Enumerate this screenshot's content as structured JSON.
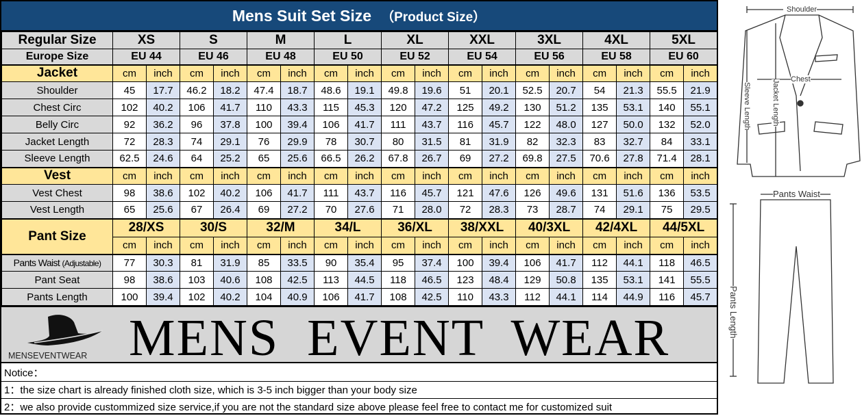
{
  "title": "Mens Suit Set Size",
  "title_sub": "（Product Size）",
  "regular_label": "Regular Size",
  "europe_label": "Europe Size",
  "sizes": [
    "XS",
    "S",
    "M",
    "L",
    "XL",
    "XXL",
    "3XL",
    "4XL",
    "5XL"
  ],
  "europe": [
    "EU 44",
    "EU 46",
    "EU 48",
    "EU 50",
    "EU 52",
    "EU 54",
    "EU 56",
    "EU 58",
    "EU 60"
  ],
  "unit_cm": "cm",
  "unit_inch": "inch",
  "jacket": {
    "label": "Jacket",
    "rows": [
      {
        "name": "Shoulder",
        "values": [
          [
            "45",
            "17.7"
          ],
          [
            "46.2",
            "18.2"
          ],
          [
            "47.4",
            "18.7"
          ],
          [
            "48.6",
            "19.1"
          ],
          [
            "49.8",
            "19.6"
          ],
          [
            "51",
            "20.1"
          ],
          [
            "52.5",
            "20.7"
          ],
          [
            "54",
            "21.3"
          ],
          [
            "55.5",
            "21.9"
          ]
        ]
      },
      {
        "name": "Chest Circ",
        "values": [
          [
            "102",
            "40.2"
          ],
          [
            "106",
            "41.7"
          ],
          [
            "110",
            "43.3"
          ],
          [
            "115",
            "45.3"
          ],
          [
            "120",
            "47.2"
          ],
          [
            "125",
            "49.2"
          ],
          [
            "130",
            "51.2"
          ],
          [
            "135",
            "53.1"
          ],
          [
            "140",
            "55.1"
          ]
        ]
      },
      {
        "name": "Belly Circ",
        "values": [
          [
            "92",
            "36.2"
          ],
          [
            "96",
            "37.8"
          ],
          [
            "100",
            "39.4"
          ],
          [
            "106",
            "41.7"
          ],
          [
            "111",
            "43.7"
          ],
          [
            "116",
            "45.7"
          ],
          [
            "122",
            "48.0"
          ],
          [
            "127",
            "50.0"
          ],
          [
            "132",
            "52.0"
          ]
        ]
      },
      {
        "name": "Jacket Length",
        "values": [
          [
            "72",
            "28.3"
          ],
          [
            "74",
            "29.1"
          ],
          [
            "76",
            "29.9"
          ],
          [
            "78",
            "30.7"
          ],
          [
            "80",
            "31.5"
          ],
          [
            "81",
            "31.9"
          ],
          [
            "82",
            "32.3"
          ],
          [
            "83",
            "32.7"
          ],
          [
            "84",
            "33.1"
          ]
        ]
      },
      {
        "name": "Sleeve Length",
        "values": [
          [
            "62.5",
            "24.6"
          ],
          [
            "64",
            "25.2"
          ],
          [
            "65",
            "25.6"
          ],
          [
            "66.5",
            "26.2"
          ],
          [
            "67.8",
            "26.7"
          ],
          [
            "69",
            "27.2"
          ],
          [
            "69.8",
            "27.5"
          ],
          [
            "70.6",
            "27.8"
          ],
          [
            "71.4",
            "28.1"
          ]
        ]
      }
    ]
  },
  "vest": {
    "label": "Vest",
    "rows": [
      {
        "name": "Vest Chest",
        "values": [
          [
            "98",
            "38.6"
          ],
          [
            "102",
            "40.2"
          ],
          [
            "106",
            "41.7"
          ],
          [
            "111",
            "43.7"
          ],
          [
            "116",
            "45.7"
          ],
          [
            "121",
            "47.6"
          ],
          [
            "126",
            "49.6"
          ],
          [
            "131",
            "51.6"
          ],
          [
            "136",
            "53.5"
          ]
        ]
      },
      {
        "name": "Vest Length",
        "values": [
          [
            "65",
            "25.6"
          ],
          [
            "67",
            "26.4"
          ],
          [
            "69",
            "27.2"
          ],
          [
            "70",
            "27.6"
          ],
          [
            "71",
            "28.0"
          ],
          [
            "72",
            "28.3"
          ],
          [
            "73",
            "28.7"
          ],
          [
            "74",
            "29.1"
          ],
          [
            "75",
            "29.5"
          ]
        ]
      }
    ]
  },
  "pants": {
    "label": "Pant Size",
    "sizes": [
      "28/XS",
      "30/S",
      "32/M",
      "34/L",
      "36/XL",
      "38/XXL",
      "40/3XL",
      "42/4XL",
      "44/5XL"
    ],
    "rows": [
      {
        "name": "Pants Waist",
        "note": "(Adjustable)",
        "values": [
          [
            "77",
            "30.3"
          ],
          [
            "81",
            "31.9"
          ],
          [
            "85",
            "33.5"
          ],
          [
            "90",
            "35.4"
          ],
          [
            "95",
            "37.4"
          ],
          [
            "100",
            "39.4"
          ],
          [
            "106",
            "41.7"
          ],
          [
            "112",
            "44.1"
          ],
          [
            "118",
            "46.5"
          ]
        ]
      },
      {
        "name": "Pant Seat",
        "values": [
          [
            "98",
            "38.6"
          ],
          [
            "103",
            "40.6"
          ],
          [
            "108",
            "42.5"
          ],
          [
            "113",
            "44.5"
          ],
          [
            "118",
            "46.5"
          ],
          [
            "123",
            "48.4"
          ],
          [
            "129",
            "50.8"
          ],
          [
            "135",
            "53.1"
          ],
          [
            "141",
            "55.5"
          ]
        ]
      },
      {
        "name": "Pants Length",
        "values": [
          [
            "100",
            "39.4"
          ],
          [
            "102",
            "40.2"
          ],
          [
            "104",
            "40.9"
          ],
          [
            "106",
            "41.7"
          ],
          [
            "108",
            "42.5"
          ],
          [
            "110",
            "43.3"
          ],
          [
            "112",
            "44.1"
          ],
          [
            "114",
            "44.9"
          ],
          [
            "116",
            "45.7"
          ]
        ]
      }
    ]
  },
  "brand": {
    "logo_text": "MENSEVENTWEAR",
    "name": "MENS EVENT WEAR"
  },
  "notice": {
    "heading": "Notice：",
    "items": [
      "1：the size chart is already finished cloth size, which is 3-5 inch bigger than your body size",
      "2：we also provide custommized size service,if you are not the standard size above please feel free to contact me for customized suit"
    ]
  },
  "diagram": {
    "shoulder": "Shoulder",
    "chest": "Chest",
    "sleeve": "Sleeve Length",
    "jacket_length": "Jacket Length",
    "pants_waist": "Pants Waist",
    "pants_length": "Pants Length"
  },
  "colors": {
    "title_bar": "#17497a",
    "header_gray": "#d9d9d9",
    "section_yellow": "#ffe699",
    "inch_blue": "#dae3f3"
  }
}
